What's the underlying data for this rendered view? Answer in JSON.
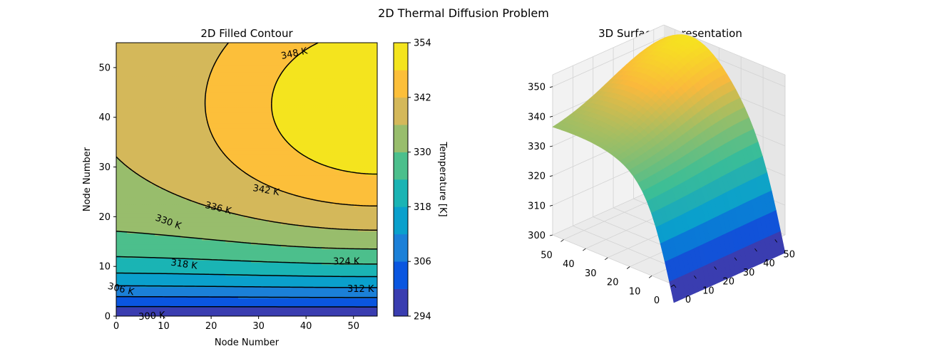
{
  "figure": {
    "title": "2D Thermal Diffusion Problem"
  },
  "colors": {
    "levels": [
      "#3a3db0",
      "#0a56e0",
      "#1b80d8",
      "#0aa0cc",
      "#1ab4b4",
      "#4cbf8c",
      "#98bd6c",
      "#d4b85a",
      "#fcbf3a",
      "#f4e41e"
    ],
    "surface_low": "#3a3db0",
    "surface_high": "#f6e31f",
    "contour_line": "#000000"
  },
  "chart_data": [
    {
      "type": "contour",
      "title": "2D Filled Contour",
      "xlabel": "Node Number",
      "ylabel": "Node Number",
      "xlim": [
        0,
        55
      ],
      "ylim": [
        0,
        55
      ],
      "xticks": [
        "0",
        "10",
        "20",
        "30",
        "40",
        "50"
      ],
      "yticks": [
        "0",
        "10",
        "20",
        "30",
        "40",
        "50"
      ],
      "contour_levels": [
        294,
        300,
        306,
        312,
        318,
        324,
        330,
        336,
        342,
        348,
        354
      ],
      "contour_labels": [
        "300 K",
        "306 K",
        "312 K",
        "318 K",
        "324 K",
        "330 K",
        "336 K",
        "342 K",
        "348 K"
      ],
      "colorbar": {
        "label": "Temperature [K]",
        "ticks": [
          "294",
          "306",
          "318",
          "330",
          "342",
          "354"
        ],
        "range": [
          294,
          354
        ]
      }
    },
    {
      "type": "surface3d",
      "title": "3D Surface Representation",
      "x_ticks": [
        "0",
        "10",
        "20",
        "30",
        "40",
        "50"
      ],
      "y_ticks": [
        "0",
        "10",
        "20",
        "30",
        "40",
        "50"
      ],
      "z_ticks": [
        "300",
        "310",
        "320",
        "330",
        "340",
        "350"
      ],
      "xlim": [
        0,
        55
      ],
      "ylim": [
        0,
        55
      ],
      "zlim": [
        300,
        354
      ]
    }
  ]
}
